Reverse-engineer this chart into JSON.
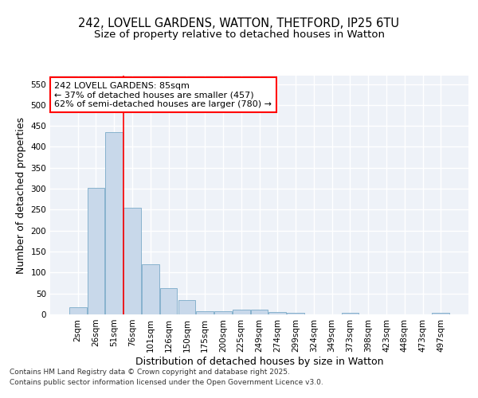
{
  "title_line1": "242, LOVELL GARDENS, WATTON, THETFORD, IP25 6TU",
  "title_line2": "Size of property relative to detached houses in Watton",
  "xlabel": "Distribution of detached houses by size in Watton",
  "ylabel": "Number of detached properties",
  "categories": [
    "2sqm",
    "26sqm",
    "51sqm",
    "76sqm",
    "101sqm",
    "126sqm",
    "150sqm",
    "175sqm",
    "200sqm",
    "225sqm",
    "249sqm",
    "274sqm",
    "299sqm",
    "324sqm",
    "349sqm",
    "373sqm",
    "398sqm",
    "423sqm",
    "448sqm",
    "473sqm",
    "497sqm"
  ],
  "values": [
    18,
    302,
    435,
    254,
    120,
    63,
    35,
    8,
    8,
    11,
    11,
    5,
    3,
    0,
    0,
    3,
    0,
    0,
    0,
    0,
    4
  ],
  "bar_color": "#c8d8ea",
  "bar_edge_color": "#7aaac8",
  "annotation_text": "242 LOVELL GARDENS: 85sqm\n← 37% of detached houses are smaller (457)\n62% of semi-detached houses are larger (780) →",
  "annotation_box_color": "white",
  "annotation_box_edge": "red",
  "vline_color": "red",
  "background_color": "#eef2f8",
  "grid_color": "white",
  "ylim": [
    0,
    570
  ],
  "yticks": [
    0,
    50,
    100,
    150,
    200,
    250,
    300,
    350,
    400,
    450,
    500,
    550
  ],
  "footer_line1": "Contains HM Land Registry data © Crown copyright and database right 2025.",
  "footer_line2": "Contains public sector information licensed under the Open Government Licence v3.0.",
  "title_fontsize": 10.5,
  "subtitle_fontsize": 9.5,
  "axis_label_fontsize": 9,
  "tick_fontsize": 7.5,
  "annotation_fontsize": 8,
  "footer_fontsize": 6.5,
  "vline_x_index": 3
}
